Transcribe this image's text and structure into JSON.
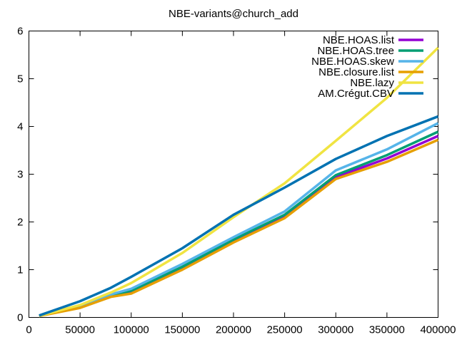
{
  "window": {
    "background": "#ffffff",
    "text_color": "#000000",
    "axis_color": "#000000"
  },
  "chart_data": {
    "type": "line",
    "title": "NBE-variants@church_add",
    "xlabel": "",
    "ylabel": "",
    "xlim": [
      0,
      400000
    ],
    "ylim": [
      0,
      6
    ],
    "x_ticks": [
      0,
      50000,
      100000,
      150000,
      200000,
      250000,
      300000,
      350000,
      400000
    ],
    "x_tick_labels": [
      "0",
      "50000",
      "100000",
      "150000",
      "200000",
      "250000",
      "300000",
      "350000",
      "400000"
    ],
    "y_ticks": [
      0,
      1,
      2,
      3,
      4,
      5,
      6
    ],
    "y_tick_labels": [
      "0",
      "1",
      "2",
      "3",
      "4",
      "5",
      "6"
    ],
    "grid": false,
    "legend_position": "top-right-inside",
    "ticks_mirrored": true,
    "x": [
      10000,
      50000,
      80000,
      100000,
      150000,
      200000,
      250000,
      300000,
      350000,
      400000
    ],
    "series": [
      {
        "name": "NBE.HOAS.list",
        "color": "#9400d3",
        "values": [
          0.03,
          0.22,
          0.45,
          0.54,
          1.03,
          1.6,
          2.12,
          2.94,
          3.33,
          3.8
        ]
      },
      {
        "name": "NBE.HOAS.tree",
        "color": "#009e73",
        "values": [
          0.03,
          0.23,
          0.46,
          0.56,
          1.06,
          1.63,
          2.15,
          2.98,
          3.4,
          3.89
        ]
      },
      {
        "name": "NBE.HOAS.skew",
        "color": "#56b4e9",
        "values": [
          0.03,
          0.24,
          0.48,
          0.6,
          1.12,
          1.68,
          2.22,
          3.08,
          3.52,
          4.07
        ]
      },
      {
        "name": "NBE.closure.list",
        "color": "#e69f00",
        "values": [
          0.03,
          0.2,
          0.43,
          0.5,
          1.0,
          1.57,
          2.08,
          2.9,
          3.26,
          3.72
        ]
      },
      {
        "name": "NBE.lazy",
        "color": "#f0e442",
        "values": [
          0.03,
          0.26,
          0.52,
          0.72,
          1.35,
          2.1,
          2.81,
          3.7,
          4.6,
          5.65
        ]
      },
      {
        "name": "AM.Crégut.CBV",
        "color": "#0072b2",
        "values": [
          0.04,
          0.34,
          0.62,
          0.85,
          1.45,
          2.15,
          2.72,
          3.32,
          3.8,
          4.21
        ]
      }
    ]
  }
}
